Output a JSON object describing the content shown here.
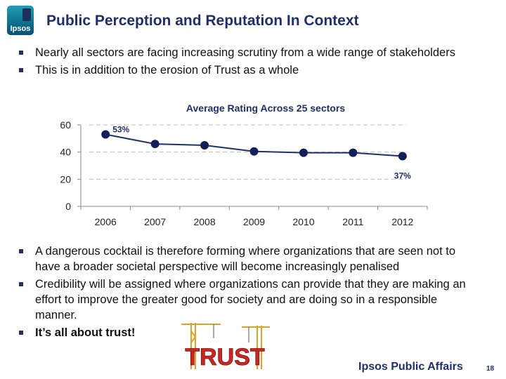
{
  "logo": {
    "text": "Ipsos"
  },
  "title": "Public Perception and Reputation In Context",
  "top_bullets": [
    "Nearly all sectors are facing increasing scrutiny from a wide range of stakeholders",
    "This is in addition to the erosion of Trust as a whole"
  ],
  "chart_data": {
    "type": "line",
    "title": "Average Rating Across 25 sectors",
    "categories": [
      "2006",
      "2007",
      "2008",
      "2009",
      "2010",
      "2011",
      "2012"
    ],
    "series": [
      {
        "values": [
          53,
          46,
          45,
          40.5,
          39.5,
          39.5,
          37
        ]
      }
    ],
    "data_labels": [
      {
        "index": 0,
        "text": "53%"
      },
      {
        "index": 6,
        "text": "37%"
      }
    ],
    "ylim": [
      0,
      60
    ],
    "yticks": [
      "0",
      "20",
      "40",
      "60"
    ],
    "grid": "dashed horizontal",
    "legend": "none",
    "colors": {
      "line": "#1f2f6b",
      "marker": "#12205a",
      "grid": "#bdbdbd",
      "label": "#1f2f6b"
    }
  },
  "bottom_bullets": [
    {
      "text": "A dangerous cocktail is therefore forming where organizations that are seen not to have a broader societal perspective will become increasingly penalised",
      "bold": false
    },
    {
      "text": "Credibility will be assigned where organizations can provide that they are making an effort to improve the greater good for society and are doing so in a responsible manner.",
      "bold": false
    },
    {
      "text": "It’s all about trust!",
      "bold": true
    }
  ],
  "trust_image": {
    "text": "TRUST"
  },
  "footer": {
    "brand": "Ipsos Public Affairs",
    "page": "18"
  }
}
